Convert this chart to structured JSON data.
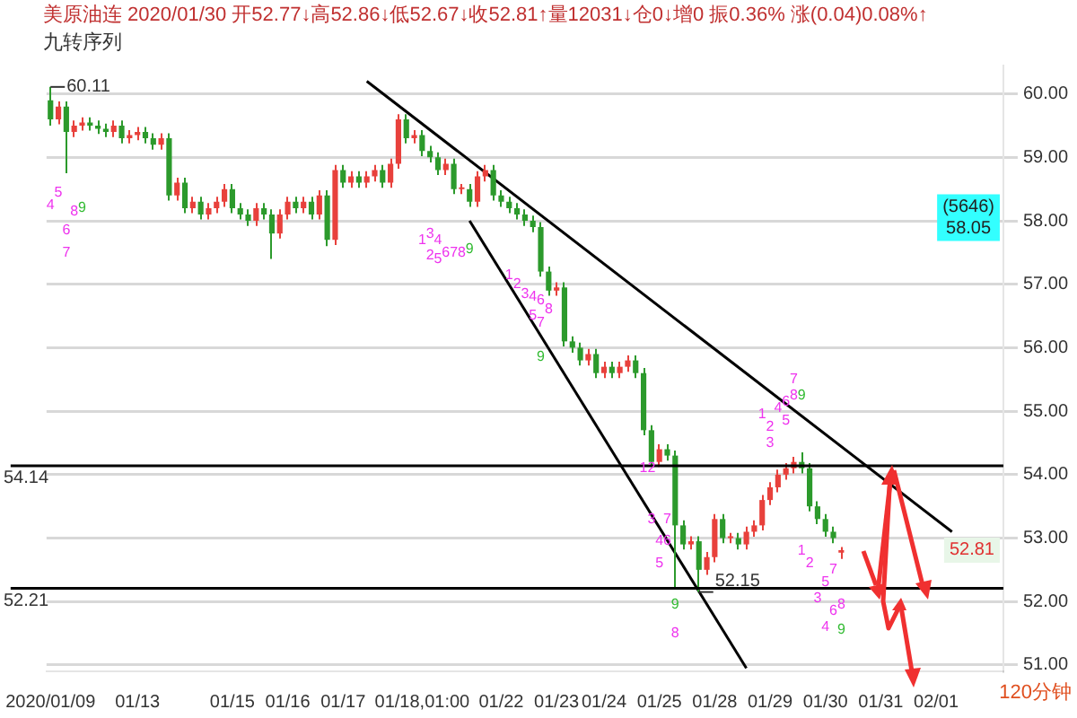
{
  "chart_data": {
    "type": "candlestick",
    "title": "美原油连 2020/01/30 开52.77↓高52.86↓低52.67↓收52.81↑量12031↓仓0↓增0 振0.36% 涨(0.04)0.08%↑",
    "subtitle": "九转序列",
    "categories": [
      "2020/01/09",
      null,
      null,
      null,
      null,
      null,
      null,
      null,
      null,
      null,
      null,
      "01/13",
      null,
      null,
      null,
      null,
      null,
      null,
      null,
      null,
      null,
      null,
      null,
      "01/15",
      null,
      null,
      null,
      null,
      null,
      null,
      "01/16",
      null,
      null,
      null,
      null,
      null,
      null,
      "01/17",
      null,
      null,
      null,
      null,
      null,
      null,
      null,
      null,
      null,
      "01/18,01:00",
      null,
      null,
      null,
      null,
      null,
      null,
      null,
      null,
      null,
      "01/22",
      null,
      null,
      null,
      null,
      null,
      null,
      "01/23",
      null,
      null,
      null,
      null,
      null,
      "01/24",
      null,
      null,
      null,
      null,
      null,
      null,
      "01/25",
      null,
      null,
      null,
      null,
      null,
      null,
      "01/28",
      null,
      null,
      null,
      null,
      null,
      null,
      "01/29",
      null,
      null,
      null,
      null,
      null,
      null,
      "01/30",
      null,
      null,
      null,
      null,
      null,
      null,
      "01/31",
      null,
      null,
      null,
      null,
      null,
      null,
      "02/01",
      null,
      null,
      null,
      null,
      null,
      null,
      null,
      null
    ],
    "ohlc": [
      [
        59.9,
        60.11,
        59.5,
        59.6
      ],
      [
        59.6,
        59.88,
        59.52,
        59.8
      ],
      [
        59.8,
        59.88,
        58.75,
        59.4
      ],
      [
        59.4,
        59.58,
        59.32,
        59.5
      ],
      [
        59.5,
        59.63,
        59.42,
        59.55
      ],
      [
        59.55,
        59.63,
        59.42,
        59.5
      ],
      [
        59.5,
        59.58,
        59.37,
        59.45
      ],
      [
        59.45,
        59.53,
        59.32,
        59.4
      ],
      [
        59.4,
        59.58,
        59.32,
        59.5
      ],
      [
        59.5,
        59.58,
        59.22,
        59.3
      ],
      [
        59.3,
        59.43,
        59.22,
        59.35
      ],
      [
        59.35,
        59.48,
        59.27,
        59.4
      ],
      [
        59.4,
        59.48,
        59.22,
        59.3
      ],
      [
        59.3,
        59.38,
        59.12,
        59.2
      ],
      [
        59.2,
        59.38,
        59.12,
        59.3
      ],
      [
        59.3,
        59.38,
        58.32,
        58.4
      ],
      [
        58.4,
        58.68,
        58.32,
        58.6
      ],
      [
        58.6,
        58.68,
        58.12,
        58.2
      ],
      [
        58.2,
        58.38,
        58.12,
        58.3
      ],
      [
        58.3,
        58.38,
        58.02,
        58.1
      ],
      [
        58.1,
        58.28,
        58.02,
        58.2
      ],
      [
        58.2,
        58.38,
        58.12,
        58.3
      ],
      [
        58.3,
        58.58,
        58.22,
        58.5
      ],
      [
        58.5,
        58.58,
        58.12,
        58.2
      ],
      [
        58.2,
        58.28,
        58.02,
        58.1
      ],
      [
        58.1,
        58.18,
        57.92,
        58.0
      ],
      [
        58.0,
        58.28,
        57.92,
        58.2
      ],
      [
        58.2,
        58.28,
        58.02,
        58.1
      ],
      [
        58.1,
        58.18,
        57.4,
        57.8
      ],
      [
        57.8,
        58.18,
        57.72,
        58.1
      ],
      [
        58.1,
        58.38,
        58.02,
        58.3
      ],
      [
        58.3,
        58.38,
        58.12,
        58.2
      ],
      [
        58.2,
        58.38,
        58.12,
        58.3
      ],
      [
        58.3,
        58.38,
        58.02,
        58.1
      ],
      [
        58.1,
        58.48,
        58.02,
        58.4
      ],
      [
        58.4,
        58.48,
        57.6,
        57.7
      ],
      [
        57.7,
        58.88,
        57.62,
        58.8
      ],
      [
        58.8,
        58.88,
        58.52,
        58.6
      ],
      [
        58.6,
        58.78,
        58.52,
        58.7
      ],
      [
        58.7,
        58.78,
        58.52,
        58.6
      ],
      [
        58.6,
        58.78,
        58.52,
        58.7
      ],
      [
        58.7,
        58.88,
        58.62,
        58.8
      ],
      [
        58.8,
        58.88,
        58.52,
        58.6
      ],
      [
        58.6,
        58.98,
        58.52,
        58.9
      ],
      [
        58.9,
        59.68,
        58.82,
        59.6
      ],
      [
        59.6,
        59.68,
        59.22,
        59.3
      ],
      [
        59.3,
        59.43,
        59.22,
        59.35
      ],
      [
        59.35,
        59.43,
        59.02,
        59.1
      ],
      [
        59.1,
        59.18,
        58.92,
        59.0
      ],
      [
        59.0,
        59.08,
        58.72,
        58.8
      ],
      [
        58.8,
        58.98,
        58.72,
        58.9
      ],
      [
        58.9,
        58.98,
        58.42,
        58.5
      ],
      [
        58.5,
        58.58,
        58.42,
        58.5
      ],
      [
        58.5,
        58.58,
        58.22,
        58.3
      ],
      [
        58.3,
        58.78,
        58.22,
        58.7
      ],
      [
        58.7,
        58.88,
        58.62,
        58.8
      ],
      [
        58.8,
        58.88,
        58.32,
        58.4
      ],
      [
        58.4,
        58.48,
        58.22,
        58.3
      ],
      [
        58.3,
        58.38,
        58.12,
        58.2
      ],
      [
        58.2,
        58.28,
        58.02,
        58.1
      ],
      [
        58.1,
        58.18,
        57.92,
        58.0
      ],
      [
        58.0,
        58.08,
        57.82,
        57.9
      ],
      [
        57.9,
        57.98,
        57.12,
        57.2
      ],
      [
        57.2,
        57.28,
        56.82,
        56.9
      ],
      [
        56.9,
        57.03,
        56.82,
        56.95
      ],
      [
        56.95,
        57.03,
        56.02,
        56.1
      ],
      [
        56.1,
        56.18,
        55.92,
        56.0
      ],
      [
        56.0,
        56.08,
        55.72,
        55.8
      ],
      [
        55.8,
        55.98,
        55.72,
        55.9
      ],
      [
        55.9,
        55.98,
        55.52,
        55.6
      ],
      [
        55.6,
        55.78,
        55.52,
        55.7
      ],
      [
        55.7,
        55.78,
        55.52,
        55.6
      ],
      [
        55.6,
        55.78,
        55.52,
        55.7
      ],
      [
        55.7,
        55.88,
        55.62,
        55.8
      ],
      [
        55.8,
        55.88,
        55.52,
        55.6
      ],
      [
        55.6,
        55.68,
        54.62,
        54.7
      ],
      [
        54.7,
        54.78,
        54.12,
        54.2
      ],
      [
        54.2,
        54.48,
        54.12,
        54.4
      ],
      [
        54.4,
        54.48,
        54.22,
        54.3
      ],
      [
        54.3,
        54.38,
        52.2,
        53.2
      ],
      [
        53.2,
        53.28,
        52.82,
        52.9
      ],
      [
        52.9,
        53.03,
        52.82,
        52.95
      ],
      [
        52.95,
        53.03,
        52.15,
        52.5
      ],
      [
        52.5,
        52.78,
        52.42,
        52.7
      ],
      [
        52.7,
        53.38,
        52.62,
        53.3
      ],
      [
        53.3,
        53.38,
        52.92,
        53.0
      ],
      [
        53.0,
        53.08,
        52.92,
        53.0
      ],
      [
        53.0,
        53.08,
        52.82,
        52.9
      ],
      [
        52.9,
        53.18,
        52.82,
        53.1
      ],
      [
        53.1,
        53.28,
        53.02,
        53.2
      ],
      [
        53.2,
        53.68,
        53.12,
        53.6
      ],
      [
        53.6,
        53.88,
        53.52,
        53.8
      ],
      [
        53.8,
        54.08,
        53.72,
        54.0
      ],
      [
        54.0,
        54.18,
        53.92,
        54.1
      ],
      [
        54.1,
        54.28,
        54.02,
        54.2
      ],
      [
        54.2,
        54.35,
        54.02,
        54.1
      ],
      [
        54.1,
        54.18,
        53.42,
        53.5
      ],
      [
        53.5,
        53.58,
        53.22,
        53.3
      ],
      [
        53.3,
        53.38,
        53.02,
        53.1
      ],
      [
        53.1,
        53.18,
        52.92,
        53.0
      ],
      [
        52.77,
        52.86,
        52.67,
        52.81
      ],
      null,
      null,
      null,
      null,
      null,
      null,
      null,
      null,
      null,
      null,
      null,
      null,
      null,
      null,
      null,
      null,
      null,
      null,
      null,
      null
    ],
    "colors": [
      "#2c9a2c",
      "#e8413c",
      "#2c9a2c",
      "#e8413c",
      "#e8413c",
      "#2c9a2c",
      "#2c9a2c",
      "#2c9a2c",
      "#e8413c",
      "#2c9a2c",
      "#e8413c",
      "#e8413c",
      "#2c9a2c",
      "#2c9a2c",
      "#e8413c",
      "#2c9a2c",
      "#e8413c",
      "#2c9a2c",
      "#e8413c",
      "#2c9a2c",
      "#e8413c",
      "#e8413c",
      "#e8413c",
      "#2c9a2c",
      "#2c9a2c",
      "#2c9a2c",
      "#e8413c",
      "#2c9a2c",
      "#2c9a2c",
      "#e8413c",
      "#e8413c",
      "#2c9a2c",
      "#e8413c",
      "#2c9a2c",
      "#e8413c",
      "#2c9a2c",
      "#e8413c",
      "#2c9a2c",
      "#e8413c",
      "#2c9a2c",
      "#e8413c",
      "#e8413c",
      "#2c9a2c",
      "#e8413c",
      "#e8413c",
      "#2c9a2c",
      "#e8413c",
      "#2c9a2c",
      "#2c9a2c",
      "#2c9a2c",
      "#e8413c",
      "#2c9a2c",
      "#e8413c",
      "#2c9a2c",
      "#e8413c",
      "#e8413c",
      "#2c9a2c",
      "#2c9a2c",
      "#2c9a2c",
      "#2c9a2c",
      "#2c9a2c",
      "#2c9a2c",
      "#2c9a2c",
      "#2c9a2c",
      "#e8413c",
      "#2c9a2c",
      "#2c9a2c",
      "#2c9a2c",
      "#e8413c",
      "#2c9a2c",
      "#e8413c",
      "#2c9a2c",
      "#e8413c",
      "#e8413c",
      "#2c9a2c",
      "#2c9a2c",
      "#2c9a2c",
      "#e8413c",
      "#2c9a2c",
      "#2c9a2c",
      "#2c9a2c",
      "#e8413c",
      "#2c9a2c",
      "#e8413c",
      "#e8413c",
      "#2c9a2c",
      "#e8413c",
      "#2c9a2c",
      "#e8413c",
      "#e8413c",
      "#e8413c",
      "#e8413c",
      "#e8413c",
      "#e8413c",
      "#e8413c",
      "#2c9a2c",
      "#2c9a2c",
      "#2c9a2c",
      "#2c9a2c",
      "#2c9a2c",
      "#e8413c",
      null,
      null,
      null,
      null,
      null,
      null,
      null,
      null,
      null,
      null,
      null,
      null,
      null,
      null,
      null,
      null,
      null,
      null,
      null,
      null
    ],
    "series": [
      {
        "type": "line",
        "color": "#000000",
        "marker": "none",
        "values": [
          null,
          null,
          null,
          null,
          null,
          null,
          null,
          null,
          null,
          null,
          null,
          null,
          null,
          null,
          null,
          null,
          null,
          null,
          null,
          null,
          null,
          null,
          null,
          null,
          null,
          null,
          null,
          null,
          null,
          null,
          null,
          null,
          null,
          null,
          null,
          null,
          null,
          null,
          null,
          null,
          60.2,
          null,
          null,
          null,
          null,
          null,
          null,
          null,
          null,
          null,
          null,
          null,
          null,
          null,
          null,
          null,
          null,
          null,
          null,
          null,
          null,
          null,
          null,
          null,
          null,
          null,
          null,
          null,
          null,
          null,
          null,
          null,
          null,
          null,
          null,
          null,
          null,
          null,
          null,
          null,
          null,
          null,
          null,
          null,
          null,
          null,
          null,
          null,
          null,
          null,
          null,
          null,
          null,
          null,
          null,
          null,
          null,
          null,
          null,
          null,
          null,
          null,
          null,
          null,
          null,
          null,
          null,
          null,
          null,
          null,
          null,
          null,
          null,
          null,
          53.1,
          null,
          null,
          null,
          null,
          null,
          null
        ]
      },
      {
        "type": "line",
        "color": "#000000",
        "marker": "none",
        "values": [
          null,
          null,
          null,
          null,
          null,
          null,
          null,
          null,
          null,
          null,
          null,
          null,
          null,
          null,
          null,
          null,
          null,
          null,
          null,
          null,
          null,
          null,
          null,
          null,
          null,
          null,
          null,
          null,
          null,
          null,
          null,
          null,
          null,
          null,
          null,
          null,
          null,
          null,
          null,
          null,
          null,
          null,
          null,
          null,
          null,
          null,
          null,
          null,
          null,
          null,
          null,
          null,
          null,
          58.0,
          null,
          null,
          null,
          null,
          null,
          null,
          null,
          null,
          null,
          null,
          null,
          null,
          null,
          null,
          null,
          null,
          null,
          null,
          null,
          null,
          null,
          null,
          null,
          null,
          null,
          null,
          null,
          null,
          null,
          null,
          null,
          null,
          null,
          null,
          50.95,
          null,
          null,
          null,
          null,
          null,
          null,
          null,
          null,
          null,
          null,
          null,
          null,
          null,
          null,
          null,
          null,
          null,
          null,
          null,
          null,
          null,
          null,
          null,
          null,
          null,
          null,
          null,
          null,
          null,
          null,
          null,
          null
        ]
      }
    ],
    "ylim": [
      50.9,
      60.45
    ],
    "yticks": [
      {
        "value": 51,
        "label": "51.00"
      },
      {
        "value": 52,
        "label": "52.00"
      },
      {
        "value": 53,
        "label": "53.00"
      },
      {
        "value": 54,
        "label": "54.00"
      },
      {
        "value": 55,
        "label": "55.00"
      },
      {
        "value": 56,
        "label": "56.00"
      },
      {
        "value": 57,
        "label": "57.00"
      },
      {
        "value": 58,
        "label": "58.00"
      },
      {
        "value": 59,
        "label": "59.00"
      },
      {
        "value": 60,
        "label": "60.00"
      }
    ],
    "ref_lines": [
      {
        "axis": "y",
        "value": 54.14,
        "label": "54.14",
        "color": "#000000"
      },
      {
        "axis": "y",
        "value": 52.21,
        "label": "52.21",
        "color": "#000000"
      }
    ],
    "annotations": [
      "120分钟",
      {
        "text": "60.11",
        "x": "2020/01/09",
        "y": 60.11
      },
      {
        "text": "52.15",
        "y": 52.15
      },
      {
        "text": "52.81",
        "y": 52.81
      },
      {
        "text": "(5646)\n58.05",
        "y": 58.05
      },
      "4",
      "5",
      "6",
      "8",
      "1",
      "2",
      "4",
      "6",
      "7",
      "8",
      "1",
      "2",
      "3",
      "4",
      "6",
      "8",
      "1",
      "2",
      "4",
      "6",
      "8",
      "1",
      "2",
      "4",
      "6",
      "8",
      "1",
      "2",
      "3",
      "4",
      "6",
      "8",
      "7",
      "3",
      "5",
      "5",
      "7",
      "3",
      "5",
      "7",
      "3",
      "5",
      "7",
      "5",
      "7",
      "9",
      "9",
      "9",
      "9",
      "9",
      "9"
    ],
    "grid": "y"
  }
}
